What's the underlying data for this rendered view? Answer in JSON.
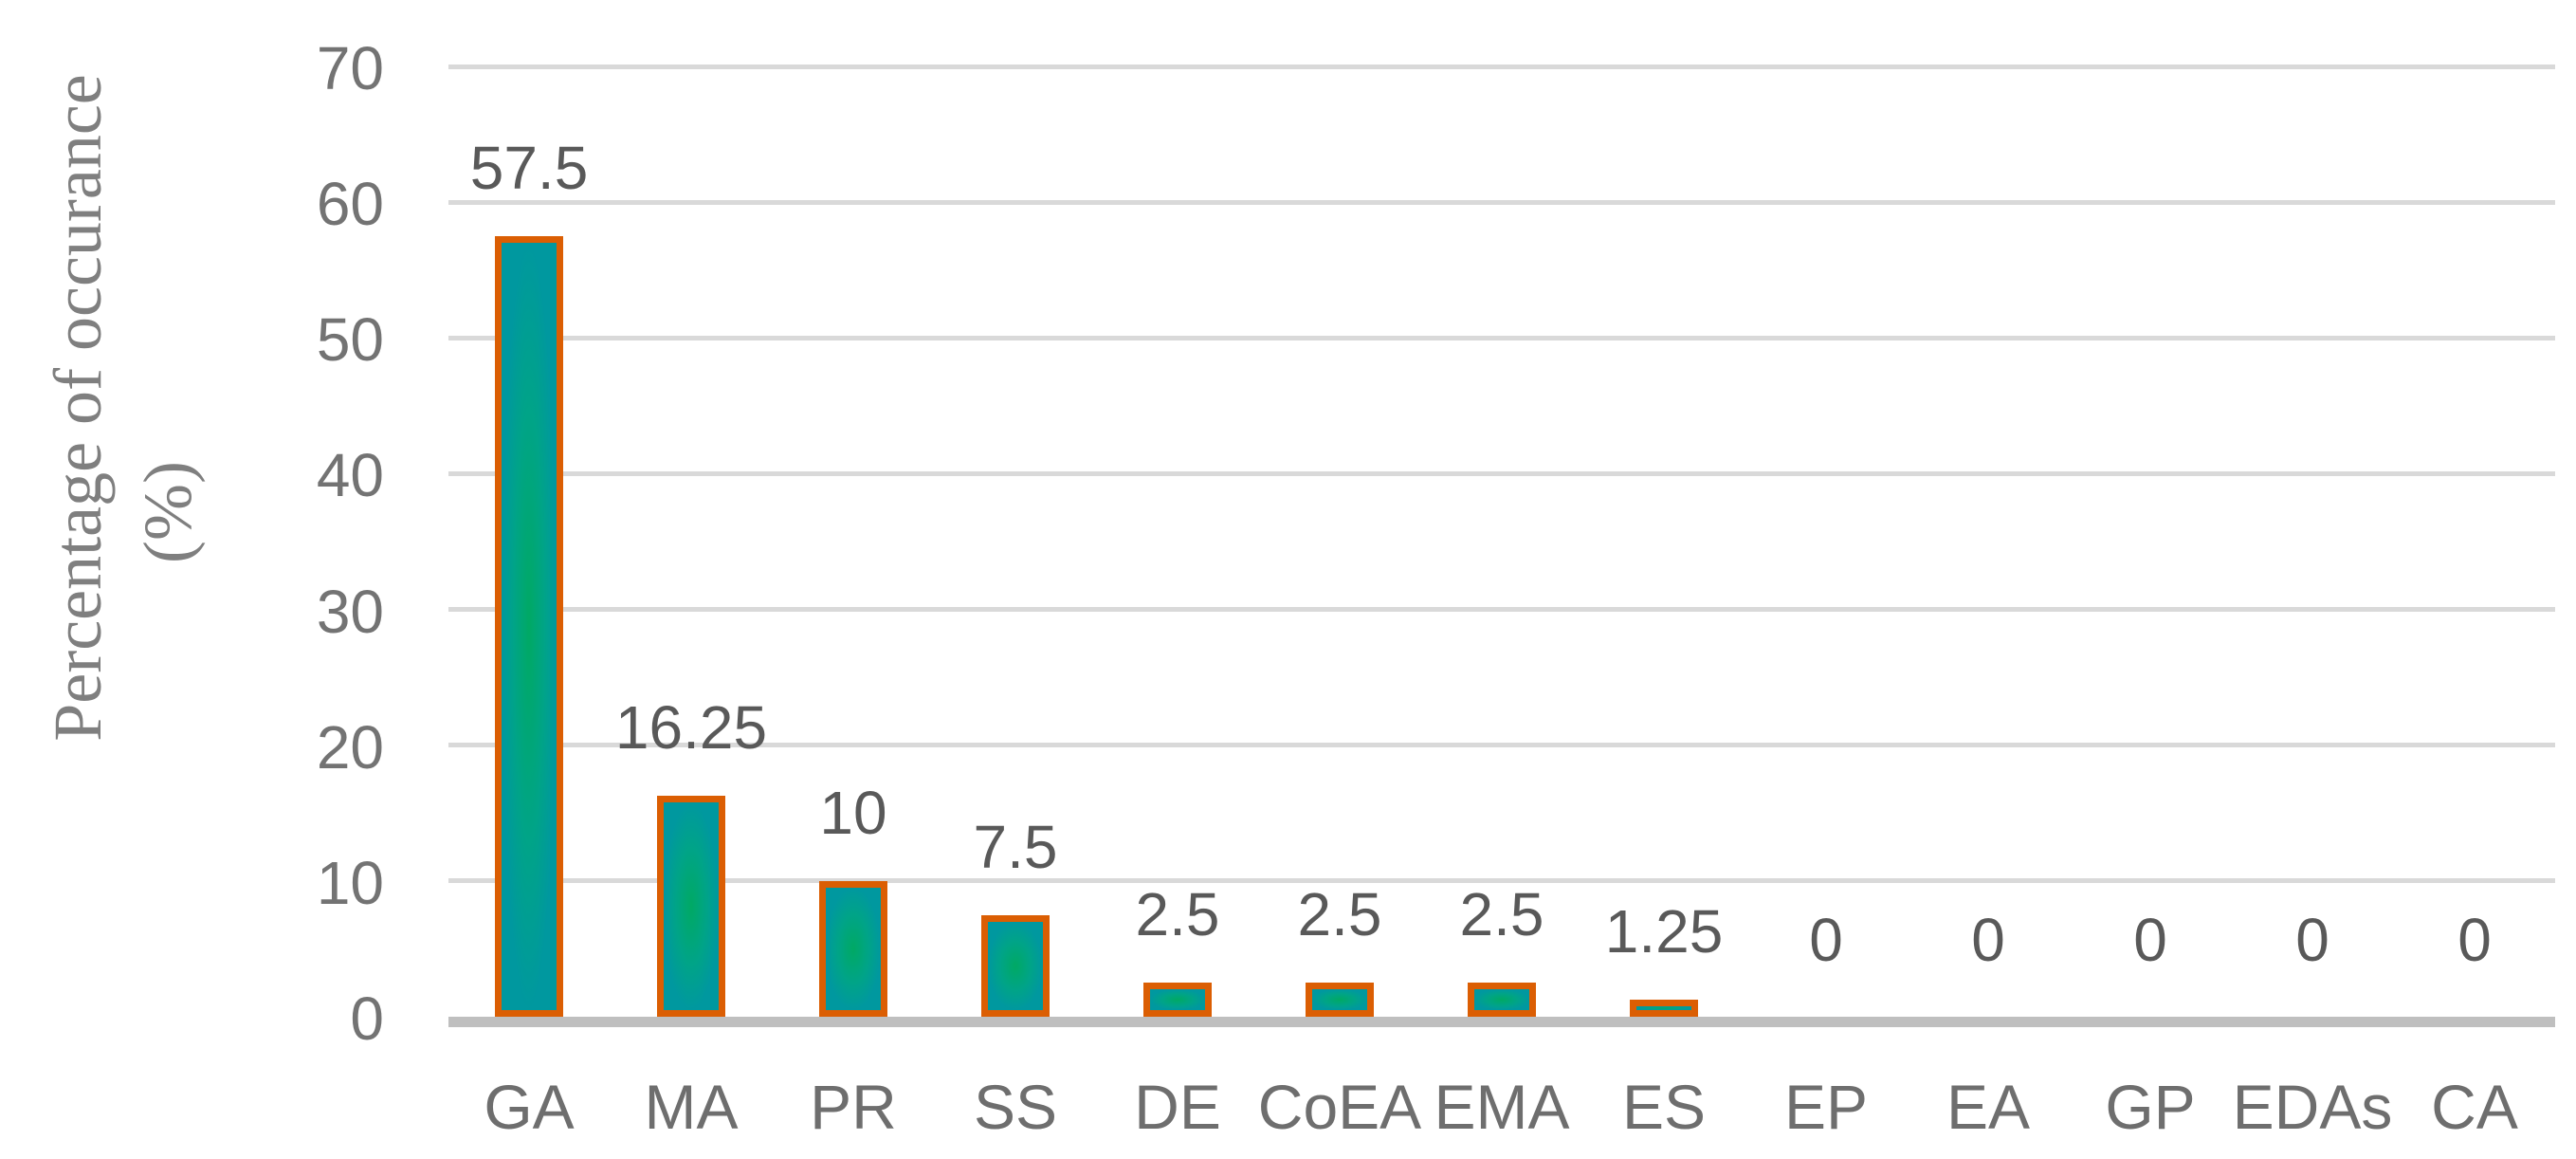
{
  "chart_data": {
    "type": "bar",
    "title": "",
    "ylabel_line1": "Percentage of occurance",
    "ylabel_line2": "(%)",
    "xlabel": "",
    "categories": [
      "GA",
      "MA",
      "PR",
      "SS",
      "DE",
      "CoEA",
      "EMA",
      "ES",
      "EP",
      "EA",
      "GP",
      "EDAs",
      "CA"
    ],
    "values": [
      57.5,
      16.25,
      10,
      7.5,
      2.5,
      2.5,
      2.5,
      1.25,
      0,
      0,
      0,
      0,
      0
    ],
    "data_labels": [
      "57.5",
      "16.25",
      "10",
      "7.5",
      "2.5",
      "2.5",
      "2.5",
      "1.25",
      "0",
      "0",
      "0",
      "0",
      "0"
    ],
    "yticks": [
      0,
      10,
      20,
      30,
      40,
      50,
      60,
      70
    ],
    "ylim": [
      0,
      70
    ],
    "grid": true,
    "legend": false,
    "colors": {
      "bar_fill_center": "#00A964",
      "bar_fill_mid": "#00A487",
      "bar_fill_edge": "#00989F",
      "bar_border": "#DB5E03",
      "gridline": "#D9D9D9",
      "axis_line": "#BFBFBF",
      "tick_text": "#737373",
      "category_text": "#6E6E6E",
      "data_label_text": "#595959",
      "axis_title_text": "#7F7F7F"
    }
  }
}
